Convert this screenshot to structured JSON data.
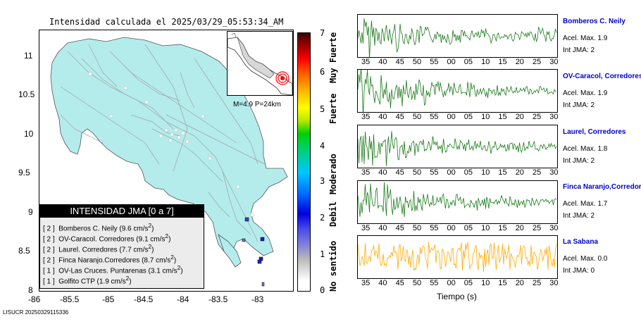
{
  "title": "Intensidad calculada el 2025/03/29_05:53:34_AM",
  "map": {
    "x_ticks": [
      "-86",
      "-85.5",
      "-85",
      "-84.5",
      "-84",
      "-83.5",
      "-83"
    ],
    "y_ticks": [
      "11",
      "10.5",
      "10",
      "9.5",
      "9",
      "8.5",
      "8"
    ],
    "land_color": "#b4ecec",
    "road_color": "#a0a0a0",
    "station_color": "#2020c0"
  },
  "inset": {
    "label": "M=4.9 P=24km",
    "epicenter_color": "#ff0000"
  },
  "scale": {
    "numbers": [
      "7",
      "6",
      "5",
      "4",
      "3",
      "2",
      "1",
      "0"
    ],
    "words": [
      "Muy Fuerte",
      "Fuerte",
      "Moderado",
      "Debil",
      "No sentido"
    ]
  },
  "legend": {
    "header": "INTENSIDAD JMA [0 a 7]",
    "rows": [
      {
        "level": "[ 2 ]",
        "text": "Bomberos C. Neily (9.6 cm/s",
        "sup": "2",
        "close": ")"
      },
      {
        "level": "[ 2 ]",
        "text": "OV-Caracol. Corredores (9.1 cm/s",
        "sup": "2",
        "close": ")"
      },
      {
        "level": "[ 2 ]",
        "text": "Laurel. Corredores (7.7 cm/s",
        "sup": "2",
        "close": ")"
      },
      {
        "level": "[ 2 ]",
        "text": "Finca Naranjo.Corredores (8.7 cm/s",
        "sup": "2",
        "close": ")"
      },
      {
        "level": "[ 1 ]",
        "text": "OV-Las Cruces. Puntarenas (3.1 cm/s",
        "sup": "2",
        "close": ")"
      },
      {
        "level": "[ 1 ]",
        "text": "Golfito CTP (1.9 cm/s",
        "sup": "2",
        "close": ")"
      }
    ]
  },
  "stations": [
    {
      "name": "Bomberos C. Neily",
      "acel": "Acel. Max. 1.9",
      "jma": "Int JMA: 2",
      "color": "#1a7a1a"
    },
    {
      "name": "OV-Caracol, Corredores",
      "acel": "Acel. Max. 1.9",
      "jma": "Int JMA: 2",
      "color": "#1a7a1a"
    },
    {
      "name": "Laurel, Corredores",
      "acel": "Acel. Max. 1.8",
      "jma": "Int JMA: 2",
      "color": "#1a7a1a"
    },
    {
      "name": "Finca Naranjo,Corredores",
      "acel": "Acel. Max. 1.7",
      "jma": "Int JMA: 2",
      "color": "#1a7a1a"
    },
    {
      "name": "La Sabana",
      "acel": "Acel. Max. 0.0",
      "jma": "Int JMA: 0",
      "color": "#ffaa00"
    }
  ],
  "trace_ticks": [
    "35",
    "40",
    "45",
    "50",
    "55",
    "00",
    "05",
    "10",
    "15",
    "20",
    "25",
    "30"
  ],
  "xlabel": "Tiempo (s)",
  "footer": "LISUCR 20250329115336"
}
